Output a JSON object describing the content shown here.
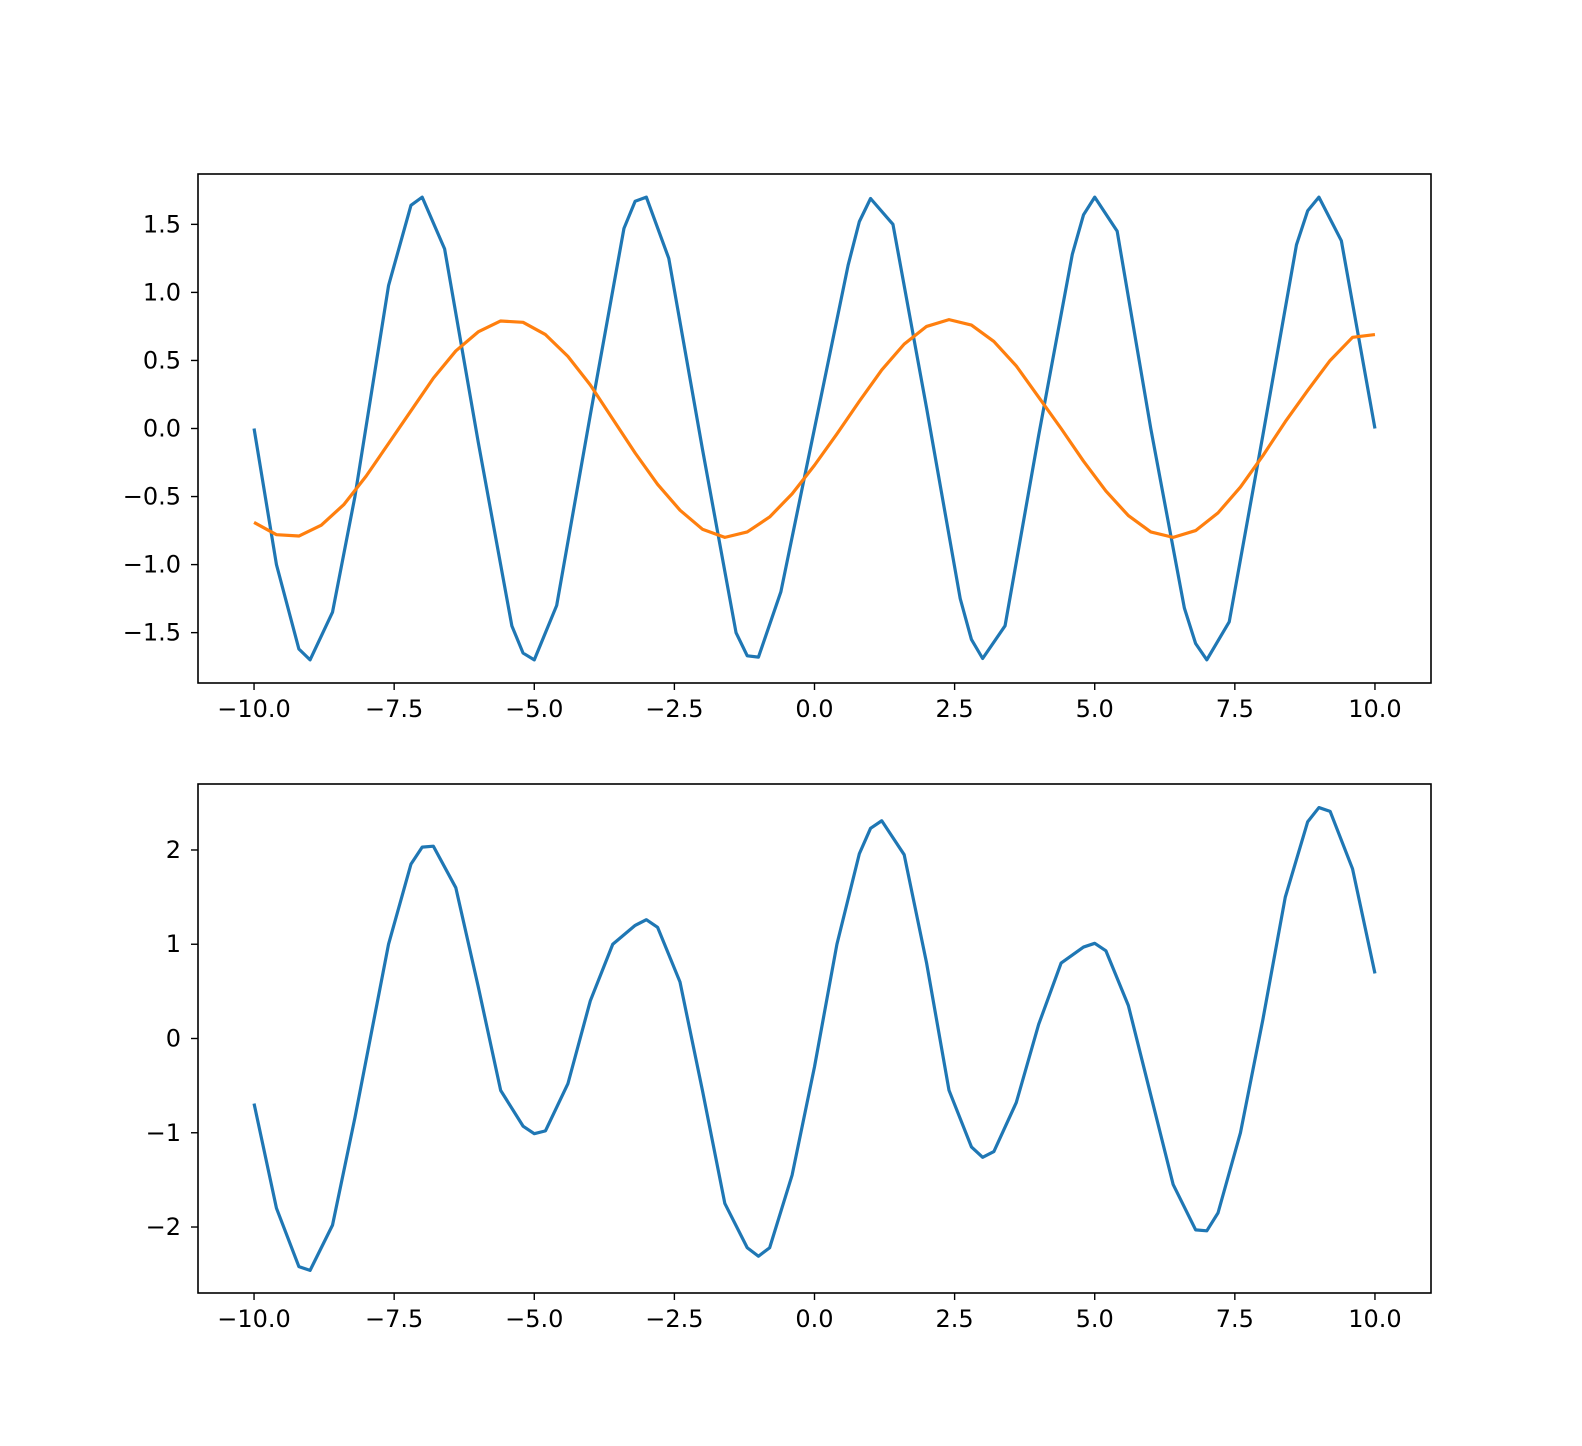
{
  "chart_data": [
    {
      "type": "line",
      "title": "",
      "xlabel": "",
      "ylabel": "",
      "xlim": [
        -11,
        11
      ],
      "ylim": [
        -1.87,
        1.87
      ],
      "xticks": [
        -10,
        -7.5,
        -5,
        -2.5,
        0,
        2.5,
        5,
        7.5,
        10
      ],
      "xtick_labels": [
        "−10.0",
        "−7.5",
        "−5.0",
        "−2.5",
        "0.0",
        "2.5",
        "5.0",
        "7.5",
        "10.0"
      ],
      "yticks": [
        -1.5,
        -1.0,
        -0.5,
        0.0,
        0.5,
        1.0,
        1.5
      ],
      "ytick_labels": [
        "−1.5",
        "−1.0",
        "−0.5",
        "0.0",
        "0.5",
        "1.0",
        "1.5"
      ],
      "grid": false,
      "series": [
        {
          "color": "#1f77b4",
          "x": [
            -10,
            -9.6,
            -9.2,
            -9.0,
            -8.6,
            -8.2,
            -7.6,
            -7.2,
            -7.0,
            -6.6,
            -6.0,
            -5.4,
            -5.2,
            -5.0,
            -4.6,
            -4.0,
            -3.4,
            -3.2,
            -3.0,
            -2.6,
            -2.0,
            -1.4,
            -1.2,
            -1.0,
            -0.6,
            0.0,
            0.6,
            0.8,
            1.0,
            1.4,
            2.0,
            2.6,
            2.8,
            3.0,
            3.4,
            4.0,
            4.6,
            4.8,
            5.0,
            5.4,
            6.0,
            6.6,
            6.8,
            7.0,
            7.4,
            8.0,
            8.6,
            8.8,
            9.0,
            9.4,
            10.0
          ],
          "y": [
            0.0,
            -1.0,
            -1.62,
            -1.7,
            -1.35,
            -0.5,
            1.05,
            1.64,
            1.7,
            1.32,
            -0.1,
            -1.45,
            -1.65,
            -1.7,
            -1.3,
            0.1,
            1.47,
            1.67,
            1.7,
            1.25,
            -0.15,
            -1.5,
            -1.67,
            -1.68,
            -1.2,
            0.0,
            1.2,
            1.52,
            1.69,
            1.5,
            0.15,
            -1.25,
            -1.55,
            -1.69,
            -1.45,
            -0.05,
            1.28,
            1.57,
            1.7,
            1.45,
            0.0,
            -1.32,
            -1.58,
            -1.7,
            -1.42,
            -0.05,
            1.35,
            1.6,
            1.7,
            1.38,
            0.0
          ]
        },
        {
          "color": "#ff7f0e",
          "x": [
            -10,
            -9.6,
            -9.2,
            -8.8,
            -8.4,
            -8.0,
            -7.6,
            -7.2,
            -6.8,
            -6.4,
            -6.0,
            -5.6,
            -5.2,
            -4.8,
            -4.4,
            -4.0,
            -3.6,
            -3.2,
            -2.8,
            -2.4,
            -2.0,
            -1.6,
            -1.2,
            -0.8,
            -0.4,
            0.0,
            0.4,
            0.8,
            1.2,
            1.6,
            2.0,
            2.4,
            2.8,
            3.2,
            3.6,
            4.0,
            4.4,
            4.8,
            5.2,
            5.6,
            6.0,
            6.4,
            6.8,
            7.2,
            7.6,
            8.0,
            8.4,
            8.8,
            9.2,
            9.6,
            10.0
          ],
          "y": [
            -0.69,
            -0.78,
            -0.79,
            -0.71,
            -0.56,
            -0.35,
            -0.11,
            0.13,
            0.37,
            0.57,
            0.71,
            0.79,
            0.78,
            0.69,
            0.53,
            0.32,
            0.07,
            -0.18,
            -0.41,
            -0.6,
            -0.74,
            -0.8,
            -0.76,
            -0.65,
            -0.48,
            -0.27,
            -0.04,
            0.2,
            0.43,
            0.62,
            0.75,
            0.8,
            0.76,
            0.64,
            0.46,
            0.23,
            0.0,
            -0.24,
            -0.46,
            -0.64,
            -0.76,
            -0.8,
            -0.75,
            -0.62,
            -0.43,
            -0.2,
            0.05,
            0.28,
            0.5,
            0.67,
            0.69
          ]
        }
      ]
    },
    {
      "type": "line",
      "title": "",
      "xlabel": "",
      "ylabel": "",
      "xlim": [
        -11,
        11
      ],
      "ylim": [
        -2.7,
        2.7
      ],
      "xticks": [
        -10,
        -7.5,
        -5,
        -2.5,
        0,
        2.5,
        5,
        7.5,
        10
      ],
      "xtick_labels": [
        "−10.0",
        "−7.5",
        "−5.0",
        "−2.5",
        "0.0",
        "2.5",
        "5.0",
        "7.5",
        "10.0"
      ],
      "yticks": [
        -2,
        -1,
        0,
        1,
        2
      ],
      "ytick_labels": [
        "−2",
        "−1",
        "0",
        "1",
        "2"
      ],
      "grid": false,
      "series": [
        {
          "color": "#1f77b4",
          "x": [
            -10,
            -9.6,
            -9.2,
            -9.0,
            -8.6,
            -8.2,
            -7.6,
            -7.2,
            -7.0,
            -6.8,
            -6.4,
            -6.0,
            -5.6,
            -5.2,
            -5.0,
            -4.8,
            -4.4,
            -4.0,
            -3.6,
            -3.2,
            -3.0,
            -2.8,
            -2.4,
            -2.0,
            -1.6,
            -1.2,
            -1.0,
            -0.8,
            -0.4,
            0.0,
            0.4,
            0.8,
            1.0,
            1.2,
            1.6,
            2.0,
            2.4,
            2.8,
            3.0,
            3.2,
            3.6,
            4.0,
            4.4,
            4.8,
            5.0,
            5.2,
            5.6,
            6.0,
            6.4,
            6.8,
            7.0,
            7.2,
            7.6,
            8.0,
            8.4,
            8.8,
            9.0,
            9.2,
            9.6,
            10.0
          ],
          "y": [
            -0.69,
            -1.8,
            -2.42,
            -2.46,
            -1.98,
            -0.84,
            1.0,
            1.85,
            2.03,
            2.04,
            1.6,
            0.55,
            -0.55,
            -0.93,
            -1.01,
            -0.98,
            -0.48,
            0.4,
            1.0,
            1.2,
            1.26,
            1.18,
            0.6,
            -0.55,
            -1.75,
            -2.22,
            -2.31,
            -2.22,
            -1.45,
            -0.3,
            1.0,
            1.96,
            2.23,
            2.31,
            1.95,
            0.8,
            -0.55,
            -1.15,
            -1.26,
            -1.2,
            -0.68,
            0.15,
            0.8,
            0.97,
            1.01,
            0.93,
            0.35,
            -0.6,
            -1.55,
            -2.03,
            -2.04,
            -1.85,
            -1.0,
            0.2,
            1.5,
            2.3,
            2.45,
            2.41,
            1.8,
            0.69
          ]
        }
      ]
    }
  ]
}
